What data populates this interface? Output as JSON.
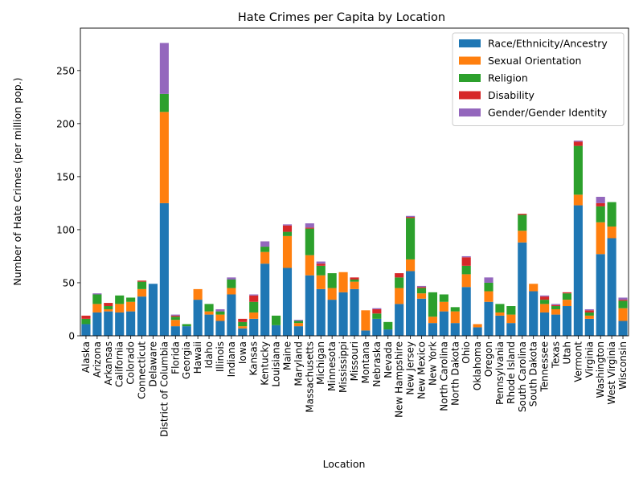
{
  "chart_data": {
    "type": "bar",
    "stacked": true,
    "title": "Hate Crimes per Capita by Location",
    "xlabel": "Location",
    "ylabel": "Number of Hate Crimes (per million pop.)",
    "ylim": [
      0,
      290
    ],
    "yticks": [
      0,
      50,
      100,
      150,
      200,
      250
    ],
    "grid": false,
    "legend_position": "upper right",
    "categories": [
      "Alaska",
      "Arizona",
      "Arkansas",
      "California",
      "Colorado",
      "Connecticut",
      "Delaware",
      "District of Columbia",
      "Florida",
      "Georgia",
      "Hawaii",
      "Idaho",
      "Illinois",
      "Indiana",
      "Iowa",
      "Kansas",
      "Kentucky",
      "Louisiana",
      "Maine",
      "Maryland",
      "Massachusetts",
      "Michigan",
      "Minnesota",
      "Mississippi",
      "Missouri",
      "Montana",
      "Nebraska",
      "Nevada",
      "New Hampshire",
      "New Jersey",
      "New Mexico",
      "New York",
      "North Carolina",
      "North Dakota",
      "Ohio",
      "Oklahoma",
      "Oregon",
      "Pennsylvania",
      "Rhode Island",
      "South Carolina",
      "South Dakota",
      "Tennessee",
      "Texas",
      "Utah",
      "Vermont",
      "Virginia",
      "Washington",
      "West Virginia",
      "Wisconsin"
    ],
    "series": [
      {
        "name": "Race/Ethnicity/Ancestry",
        "color": "#1f77b4",
        "values": [
          11,
          22,
          23,
          22,
          23,
          37,
          49,
          125,
          9,
          9,
          34,
          20,
          14,
          39,
          7,
          16,
          68,
          10,
          64,
          9,
          57,
          44,
          34,
          41,
          44,
          5,
          16,
          6,
          30,
          61,
          35,
          12,
          23,
          12,
          46,
          8,
          32,
          19,
          12,
          88,
          42,
          22,
          20,
          28,
          123,
          16,
          77,
          92,
          14
        ]
      },
      {
        "name": "Sexual Orientation",
        "color": "#ff7f0e",
        "values": [
          0,
          8,
          2,
          8,
          9,
          7,
          0,
          86,
          6,
          0,
          10,
          3,
          6,
          6,
          2,
          6,
          11,
          0,
          30,
          3,
          19,
          13,
          11,
          19,
          7,
          19,
          0,
          0,
          15,
          11,
          5,
          6,
          9,
          11,
          12,
          3,
          10,
          3,
          8,
          11,
          7,
          8,
          5,
          6,
          10,
          3,
          30,
          11,
          12
        ]
      },
      {
        "name": "Religion",
        "color": "#2ca02c",
        "values": [
          5,
          9,
          3,
          8,
          4,
          7,
          0,
          17,
          3,
          2,
          0,
          7,
          3,
          8,
          4,
          10,
          5,
          9,
          4,
          2,
          25,
          9,
          14,
          0,
          2,
          0,
          5,
          7,
          10,
          39,
          5,
          23,
          7,
          4,
          8,
          0,
          8,
          8,
          8,
          15,
          0,
          4,
          3,
          6,
          46,
          3,
          15,
          23,
          7
        ]
      },
      {
        "name": "Disability",
        "color": "#d62728",
        "values": [
          3,
          0,
          3,
          0,
          0,
          1,
          0,
          0,
          1,
          0,
          0,
          0,
          0,
          0,
          3,
          6,
          0,
          0,
          6,
          0,
          1,
          2,
          0,
          0,
          2,
          0,
          4,
          0,
          4,
          1,
          1,
          0,
          0,
          0,
          8,
          0,
          0,
          0,
          0,
          1,
          0,
          3,
          1,
          1,
          4,
          2,
          3,
          0,
          1
        ]
      },
      {
        "name": "Gender/Gender Identity",
        "color": "#9467bd",
        "values": [
          0,
          1,
          0,
          0,
          0,
          0,
          0,
          48,
          1,
          0,
          0,
          0,
          2,
          2,
          0,
          1,
          5,
          0,
          1,
          1,
          4,
          2,
          0,
          0,
          0,
          0,
          1,
          0,
          0,
          1,
          1,
          0,
          0,
          0,
          1,
          0,
          5,
          0,
          0,
          0,
          0,
          1,
          1,
          0,
          1,
          1,
          6,
          0,
          2
        ]
      }
    ]
  }
}
